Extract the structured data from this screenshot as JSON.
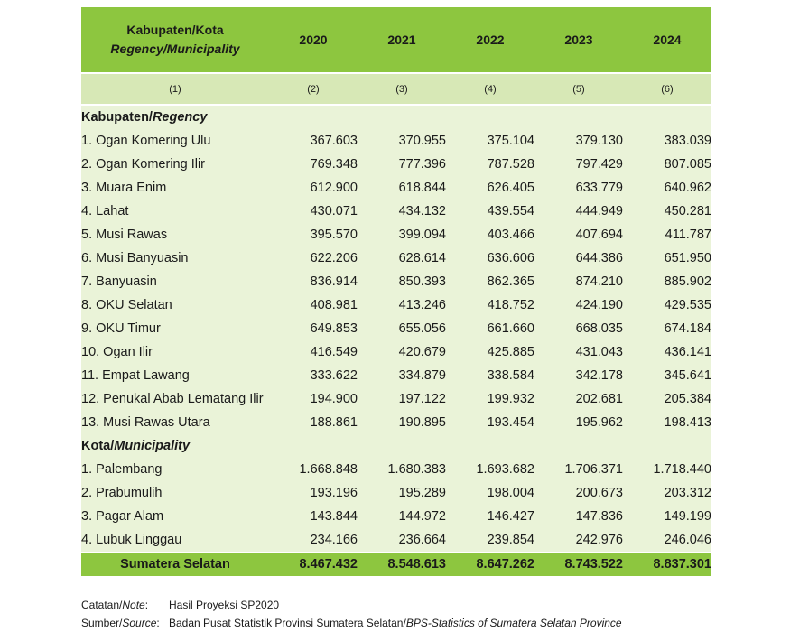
{
  "header": {
    "region_id": "Kabupaten/Kota",
    "region_en": "Regency/Municipality",
    "years": [
      "2020",
      "2021",
      "2022",
      "2023",
      "2024"
    ],
    "col_numbers": [
      "(1)",
      "(2)",
      "(3)",
      "(4)",
      "(5)",
      "(6)"
    ]
  },
  "sections": [
    {
      "title_id": "Kabupaten/",
      "title_en": "Regency",
      "rows": [
        {
          "name": "1. Ogan Komering Ulu",
          "values": [
            "367.603",
            "370.955",
            "375.104",
            "379.130",
            "383.039"
          ]
        },
        {
          "name": "2. Ogan Komering Ilir",
          "values": [
            "769.348",
            "777.396",
            "787.528",
            "797.429",
            "807.085"
          ]
        },
        {
          "name": "3. Muara Enim",
          "values": [
            "612.900",
            "618.844",
            "626.405",
            "633.779",
            "640.962"
          ]
        },
        {
          "name": "4. Lahat",
          "values": [
            "430.071",
            "434.132",
            "439.554",
            "444.949",
            "450.281"
          ]
        },
        {
          "name": "5. Musi Rawas",
          "values": [
            "395.570",
            "399.094",
            "403.466",
            "407.694",
            "411.787"
          ]
        },
        {
          "name": "6. Musi Banyuasin",
          "values": [
            "622.206",
            "628.614",
            "636.606",
            "644.386",
            "651.950"
          ]
        },
        {
          "name": "7. Banyuasin",
          "values": [
            "836.914",
            "850.393",
            "862.365",
            "874.210",
            "885.902"
          ]
        },
        {
          "name": "8. OKU Selatan",
          "values": [
            "408.981",
            "413.246",
            "418.752",
            "424.190",
            "429.535"
          ]
        },
        {
          "name": "9. OKU Timur",
          "values": [
            "649.853",
            "655.056",
            "661.660",
            "668.035",
            "674.184"
          ]
        },
        {
          "name": "10. Ogan Ilir",
          "values": [
            "416.549",
            "420.679",
            "425.885",
            "431.043",
            "436.141"
          ]
        },
        {
          "name": "11. Empat Lawang",
          "values": [
            "333.622",
            "334.879",
            "338.584",
            "342.178",
            "345.641"
          ]
        },
        {
          "name": "12. Penukal Abab Lematang Ilir",
          "values": [
            "194.900",
            "197.122",
            "199.932",
            "202.681",
            "205.384"
          ]
        },
        {
          "name": "13. Musi Rawas Utara",
          "values": [
            "188.861",
            "190.895",
            "193.454",
            "195.962",
            "198.413"
          ]
        }
      ]
    },
    {
      "title_id": "Kota/",
      "title_en": "Municipality",
      "rows": [
        {
          "name": "1. Palembang",
          "values": [
            "1.668.848",
            "1.680.383",
            "1.693.682",
            "1.706.371",
            "1.718.440"
          ]
        },
        {
          "name": "2. Prabumulih",
          "values": [
            "193.196",
            "195.289",
            "198.004",
            "200.673",
            "203.312"
          ]
        },
        {
          "name": "3. Pagar Alam",
          "values": [
            "143.844",
            "144.972",
            "146.427",
            "147.836",
            "149.199"
          ]
        },
        {
          "name": "4. Lubuk Linggau",
          "values": [
            "234.166",
            "236.664",
            "239.854",
            "242.976",
            "246.046"
          ]
        }
      ]
    }
  ],
  "total": {
    "name": "Sumatera Selatan",
    "values": [
      "8.467.432",
      "8.548.613",
      "8.647.262",
      "8.743.522",
      "8.837.301"
    ]
  },
  "notes": {
    "note_label_id": "Catatan/",
    "note_label_en": "Note",
    "note_text": "Hasil Proyeksi SP2020",
    "source_label_id": "Sumber/",
    "source_label_en": "Source",
    "source_text_id": "Badan Pusat Statistik Provinsi Sumatera Selatan/",
    "source_text_en": "BPS-Statistics of Sumatera Selatan Province"
  }
}
